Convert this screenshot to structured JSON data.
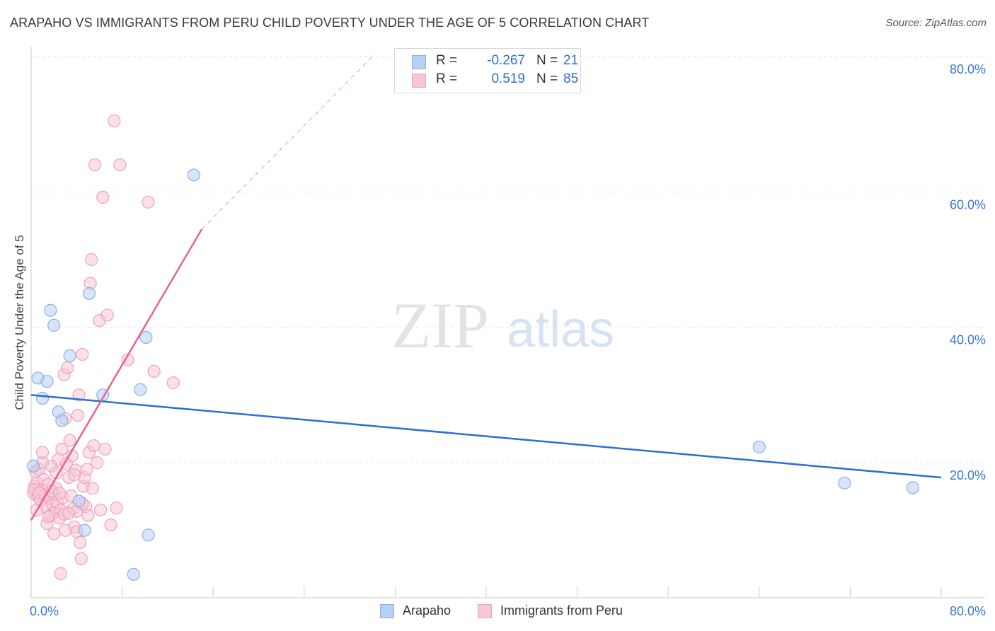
{
  "title": "ARAPAHO VS IMMIGRANTS FROM PERU CHILD POVERTY UNDER THE AGE OF 5 CORRELATION CHART",
  "source": "Source: ZipAtlas.com",
  "watermark": {
    "zip": "ZIP",
    "atlas": "atlas"
  },
  "legend": {
    "rows": [
      {
        "label": "R =",
        "r": "-0.267",
        "n_label": "N =",
        "n": "21",
        "fill": "#b7d0f5",
        "stroke": "#8fb0e0"
      },
      {
        "label": "R =",
        "r": "0.519",
        "n_label": "N =",
        "n": "85",
        "fill": "#f8c7d6",
        "stroke": "#eda3bc"
      }
    ]
  },
  "chart_data": {
    "type": "scatter",
    "title": "ARAPAHO VS IMMIGRANTS FROM PERU CHILD POVERTY UNDER THE AGE OF 5 CORRELATION CHART",
    "xlabel": "",
    "ylabel": "Child Poverty Under the Age of 5",
    "xlim": [
      0,
      80
    ],
    "ylim": [
      0,
      80
    ],
    "x_tick_labels": [
      "0.0%",
      "80.0%"
    ],
    "y_tick_values": [
      20,
      40,
      60,
      80
    ],
    "y_tick_labels": [
      "20.0%",
      "40.0%",
      "60.0%",
      "80.0%"
    ],
    "grid": true,
    "series": [
      {
        "name": "Arapaho",
        "color": "#2a6fd2",
        "fill": "#b7d0f5",
        "stroke": "#8fb0e0",
        "points": [
          [
            0.2,
            19.5
          ],
          [
            0.6,
            32.5
          ],
          [
            1.0,
            29.5
          ],
          [
            1.4,
            32.0
          ],
          [
            1.7,
            42.5
          ],
          [
            2.0,
            40.3
          ],
          [
            2.4,
            27.5
          ],
          [
            2.7,
            26.2
          ],
          [
            3.4,
            35.8
          ],
          [
            4.2,
            14.3
          ],
          [
            4.7,
            10.0
          ],
          [
            5.1,
            45.0
          ],
          [
            6.3,
            30.0
          ],
          [
            9.0,
            3.5
          ],
          [
            9.6,
            30.8
          ],
          [
            10.1,
            38.5
          ],
          [
            10.3,
            9.3
          ],
          [
            14.3,
            62.5
          ],
          [
            64.0,
            22.3
          ],
          [
            71.5,
            17.0
          ],
          [
            77.5,
            16.3
          ]
        ],
        "trend": {
          "x": [
            0,
            80
          ],
          "y": [
            30.0,
            17.8
          ]
        }
      },
      {
        "name": "Immigrants from Peru",
        "color": "#e8628d",
        "fill": "#f8c7d6",
        "stroke": "#eda3bc",
        "points": [
          [
            0.2,
            15.5
          ],
          [
            0.3,
            16.5
          ],
          [
            0.4,
            18.7
          ],
          [
            0.5,
            17.0
          ],
          [
            0.6,
            15.0
          ],
          [
            0.7,
            19.0
          ],
          [
            0.8,
            14.5
          ],
          [
            0.9,
            16.0
          ],
          [
            1.0,
            20.0
          ],
          [
            1.1,
            17.5
          ],
          [
            1.2,
            15.2
          ],
          [
            1.3,
            13.5
          ],
          [
            1.4,
            11.0
          ],
          [
            1.5,
            16.8
          ],
          [
            1.6,
            14.7
          ],
          [
            1.7,
            12.2
          ],
          [
            1.8,
            19.5
          ],
          [
            1.9,
            13.8
          ],
          [
            2.0,
            15.3
          ],
          [
            2.1,
            12.7
          ],
          [
            2.2,
            18.5
          ],
          [
            2.3,
            14.1
          ],
          [
            2.4,
            20.5
          ],
          [
            2.5,
            11.8
          ],
          [
            2.6,
            13.0
          ],
          [
            2.6,
            3.6
          ],
          [
            2.7,
            22.0
          ],
          [
            2.8,
            14.8
          ],
          [
            2.9,
            12.4
          ],
          [
            2.9,
            33.0
          ],
          [
            3.0,
            26.5
          ],
          [
            3.1,
            19.8
          ],
          [
            3.2,
            34.0
          ],
          [
            3.3,
            17.8
          ],
          [
            3.4,
            23.3
          ],
          [
            3.5,
            15.1
          ],
          [
            3.6,
            21.0
          ],
          [
            3.7,
            13.2
          ],
          [
            3.8,
            10.5
          ],
          [
            3.9,
            18.9
          ],
          [
            4.0,
            9.8
          ],
          [
            4.1,
            27.0
          ],
          [
            4.2,
            30.0
          ],
          [
            4.3,
            8.2
          ],
          [
            4.4,
            5.8
          ],
          [
            4.5,
            36.0
          ],
          [
            4.6,
            16.5
          ],
          [
            4.7,
            17.8
          ],
          [
            4.8,
            13.5
          ],
          [
            4.9,
            19.0
          ],
          [
            5.0,
            12.2
          ],
          [
            5.1,
            21.5
          ],
          [
            5.2,
            46.5
          ],
          [
            5.3,
            50.0
          ],
          [
            5.4,
            16.2
          ],
          [
            5.5,
            22.5
          ],
          [
            5.6,
            64.0
          ],
          [
            5.8,
            20.0
          ],
          [
            6.0,
            41.0
          ],
          [
            6.1,
            13.0
          ],
          [
            6.3,
            59.2
          ],
          [
            6.5,
            22.0
          ],
          [
            6.7,
            41.8
          ],
          [
            7.0,
            10.8
          ],
          [
            7.3,
            70.5
          ],
          [
            7.5,
            13.3
          ],
          [
            7.8,
            64.0
          ],
          [
            8.5,
            35.2
          ],
          [
            10.3,
            58.5
          ],
          [
            10.8,
            33.5
          ],
          [
            12.5,
            31.8
          ],
          [
            0.5,
            13.0
          ],
          [
            1.0,
            21.5
          ],
          [
            2.0,
            9.5
          ],
          [
            3.0,
            10.0
          ],
          [
            1.5,
            12.0
          ],
          [
            2.2,
            16.2
          ],
          [
            4.0,
            12.8
          ],
          [
            0.3,
            16.0
          ],
          [
            1.8,
            15.8
          ],
          [
            2.5,
            15.5
          ],
          [
            3.3,
            12.5
          ],
          [
            3.8,
            18.2
          ],
          [
            4.5,
            14.0
          ],
          [
            0.7,
            15.5
          ]
        ],
        "trend": {
          "x": [
            0,
            15
          ],
          "y": [
            11.5,
            54.5
          ],
          "dash_to": [
            30,
            80
          ]
        }
      }
    ]
  }
}
